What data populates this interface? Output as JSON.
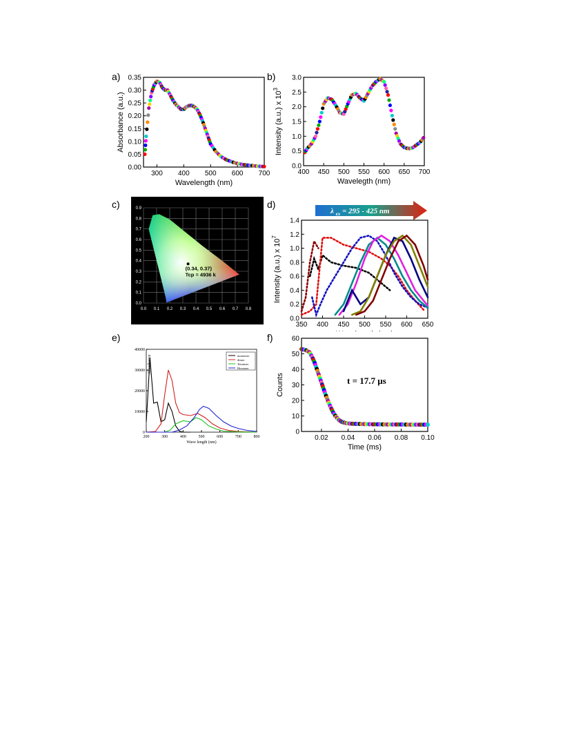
{
  "chart_data": [
    {
      "id": "a",
      "panel_label": "a)",
      "type": "scatter",
      "xlabel": "Wavelength (nm)",
      "ylabel": "Absorbance (a.u.)",
      "xlim": [
        250,
        700
      ],
      "ylim": [
        0,
        0.35
      ],
      "xticks": [
        300,
        400,
        500,
        600,
        700
      ],
      "yticks": [
        "0.00",
        "0.05",
        "0.10",
        "0.15",
        "0.20",
        "0.25",
        "0.30",
        "0.35"
      ],
      "series": [
        {
          "x": [
            255,
            260,
            270,
            280,
            290,
            300,
            310,
            320,
            330,
            340,
            350,
            360,
            370,
            380,
            390,
            400,
            410,
            420,
            430,
            440,
            450,
            460,
            470,
            480,
            490,
            500,
            520,
            540,
            560,
            580,
            600,
            620,
            640,
            660,
            680,
            700
          ],
          "y": [
            0.05,
            0.12,
            0.23,
            0.29,
            0.32,
            0.335,
            0.33,
            0.31,
            0.3,
            0.3,
            0.28,
            0.26,
            0.245,
            0.235,
            0.225,
            0.225,
            0.235,
            0.24,
            0.24,
            0.235,
            0.225,
            0.205,
            0.18,
            0.15,
            0.12,
            0.09,
            0.06,
            0.04,
            0.028,
            0.02,
            0.014,
            0.01,
            0.007,
            0.005,
            0.003,
            0.002
          ]
        }
      ]
    },
    {
      "id": "b",
      "panel_label": "b)",
      "type": "scatter",
      "xlabel": "Wavelegth (nm)",
      "ylabel": "Intensity (a.u.) x 10",
      "ylabel_exp": "3",
      "xlim": [
        400,
        700
      ],
      "ylim": [
        0,
        3.0
      ],
      "xticks": [
        400,
        450,
        500,
        550,
        600,
        650,
        700
      ],
      "yticks": [
        "0.0",
        "0.5",
        "1.0",
        "1.5",
        "2.0",
        "2.5",
        "3.0"
      ],
      "series": [
        {
          "x": [
            403,
            410,
            420,
            430,
            440,
            450,
            460,
            470,
            480,
            490,
            500,
            510,
            520,
            530,
            540,
            550,
            560,
            570,
            580,
            590,
            600,
            610,
            620,
            630,
            640,
            650,
            660,
            670,
            680,
            690,
            698
          ],
          "y": [
            0.45,
            0.6,
            0.75,
            1.0,
            1.5,
            2.1,
            2.3,
            2.25,
            2.05,
            1.8,
            1.75,
            2.1,
            2.4,
            2.45,
            2.3,
            2.2,
            2.45,
            2.7,
            2.85,
            2.95,
            2.85,
            2.4,
            1.7,
            1.1,
            0.75,
            0.62,
            0.58,
            0.6,
            0.7,
            0.8,
            0.95
          ]
        }
      ]
    },
    {
      "id": "c",
      "panel_label": "c)",
      "type": "scatter",
      "xlim": [
        0.0,
        0.8
      ],
      "ylim": [
        0.0,
        0.9
      ],
      "xticks": [
        "0.0",
        "0.1",
        "0.2",
        "0.3",
        "0.4",
        "0.5",
        "0.6",
        "0.7",
        "0.8"
      ],
      "yticks": [
        "0.0",
        "0.1",
        "0.2",
        "0.3",
        "0.4",
        "0.5",
        "0.6",
        "0.7",
        "0.8",
        "0.9"
      ],
      "point": {
        "x": 0.34,
        "y": 0.37
      },
      "annotation": [
        "(0.34, 0.37)",
        "Tcp = 4936 k"
      ]
    },
    {
      "id": "d",
      "panel_label": "d)",
      "type": "line",
      "xlabel": "Wavelength (nm)",
      "ylabel": "Intensity (a.u.) x 10",
      "ylabel_exp": "7",
      "xlim": [
        350,
        650
      ],
      "ylim": [
        0,
        1.4
      ],
      "xticks": [
        350,
        400,
        450,
        500,
        550,
        600,
        650
      ],
      "yticks": [
        "0.0",
        "0.2",
        "0.4",
        "0.6",
        "0.8",
        "1.0",
        "1.2",
        "1.4"
      ],
      "banner": "295 - 425 nm",
      "banner_prefix": "λ",
      "banner_sub": "ex",
      "series": [
        {
          "color": "#8b0000",
          "x": [
            350,
            360,
            370,
            380,
            390
          ],
          "y": [
            0.1,
            0.3,
            0.8,
            1.1,
            1.0
          ]
        },
        {
          "color": "#000000",
          "x": [
            370,
            380,
            390,
            400,
            420,
            450,
            480,
            510,
            540,
            560
          ],
          "y": [
            0.6,
            0.85,
            0.7,
            0.9,
            0.8,
            0.75,
            0.72,
            0.65,
            0.5,
            0.4
          ]
        },
        {
          "color": "#e01010",
          "x": [
            350,
            370,
            385,
            400,
            420,
            450,
            480,
            510,
            540,
            560,
            580,
            600,
            620,
            640
          ],
          "y": [
            0.05,
            0.1,
            0.2,
            1.15,
            1.15,
            1.05,
            1.0,
            0.95,
            0.85,
            0.75,
            0.6,
            0.4,
            0.25,
            0.12
          ]
        },
        {
          "color": "#1010c0",
          "x": [
            375,
            385,
            395,
            410,
            430,
            450,
            470,
            490,
            510,
            530,
            550,
            570,
            590,
            610,
            630,
            650
          ],
          "y": [
            0.3,
            0.05,
            0.2,
            0.4,
            0.6,
            0.8,
            1.0,
            1.15,
            1.18,
            1.1,
            0.9,
            0.65,
            0.45,
            0.3,
            0.2,
            0.15
          ]
        },
        {
          "color": "#008b8b",
          "x": [
            430,
            450,
            470,
            490,
            510,
            530,
            550,
            570,
            590,
            610,
            630,
            650
          ],
          "y": [
            0.05,
            0.2,
            0.5,
            0.8,
            1.05,
            1.15,
            1.05,
            0.85,
            0.6,
            0.4,
            0.25,
            0.15
          ]
        },
        {
          "color": "#e020e0",
          "x": [
            440,
            460,
            480,
            500,
            520,
            540,
            560,
            580,
            600,
            620,
            640,
            650
          ],
          "y": [
            0.05,
            0.2,
            0.5,
            0.85,
            1.1,
            1.18,
            1.1,
            0.9,
            0.65,
            0.4,
            0.25,
            0.18
          ]
        },
        {
          "color": "#000080",
          "x": [
            450,
            470,
            490,
            510,
            530,
            550,
            570,
            590,
            610,
            630,
            650
          ],
          "y": [
            0.1,
            0.4,
            0.2,
            0.3,
            0.6,
            0.9,
            1.15,
            1.1,
            0.85,
            0.55,
            0.3
          ]
        },
        {
          "color": "#808000",
          "x": [
            470,
            490,
            510,
            530,
            550,
            570,
            590,
            610,
            630,
            650
          ],
          "y": [
            0.05,
            0.1,
            0.3,
            0.6,
            0.9,
            1.1,
            1.18,
            1.05,
            0.75,
            0.45
          ]
        },
        {
          "color": "#800000",
          "x": [
            480,
            500,
            520,
            540,
            560,
            580,
            600,
            620,
            640,
            650
          ],
          "y": [
            0.05,
            0.1,
            0.25,
            0.55,
            0.85,
            1.1,
            1.18,
            1.05,
            0.75,
            0.55
          ]
        }
      ]
    },
    {
      "id": "e",
      "panel_label": "e)",
      "type": "line",
      "xlabel": "Wave length (nm)",
      "ylabel": "Absorbance",
      "xlim": [
        200,
        800
      ],
      "ylim": [
        0,
        40000
      ],
      "xticks": [
        200,
        300,
        400,
        500,
        600,
        700,
        800
      ],
      "yticks": [
        0,
        10000,
        20000,
        30000,
        40000
      ],
      "legend": "top-right",
      "series": [
        {
          "name": "monomer",
          "color": "#000000",
          "x": [
            200,
            210,
            220,
            230,
            240,
            260,
            280,
            300,
            320,
            340,
            360,
            380,
            400,
            440
          ],
          "y": [
            5000,
            20000,
            36000,
            25000,
            14000,
            14500,
            5000,
            6000,
            14000,
            10000,
            3000,
            500,
            0,
            0
          ]
        },
        {
          "name": "dimer",
          "color": "#d02020",
          "x": [
            200,
            250,
            280,
            300,
            320,
            340,
            360,
            380,
            400,
            440,
            480,
            520,
            560,
            600,
            650,
            700,
            800
          ],
          "y": [
            0,
            300,
            4000,
            18000,
            30000,
            25000,
            14000,
            9500,
            8500,
            8000,
            9000,
            7000,
            4000,
            2000,
            800,
            300,
            0
          ]
        },
        {
          "name": "Tetramer",
          "color": "#20c020",
          "x": [
            200,
            300,
            330,
            360,
            400,
            440,
            470,
            500,
            540,
            580,
            620,
            700,
            800
          ],
          "y": [
            0,
            0,
            1000,
            4000,
            5500,
            5000,
            7000,
            6000,
            3000,
            1500,
            500,
            100,
            0
          ]
        },
        {
          "name": "Hexamer",
          "color": "#2020d0",
          "x": [
            200,
            340,
            380,
            420,
            460,
            490,
            510,
            540,
            580,
            620,
            660,
            700,
            750,
            800
          ],
          "y": [
            0,
            0,
            1000,
            3000,
            7000,
            11000,
            12500,
            11500,
            8000,
            5000,
            3000,
            1800,
            800,
            300
          ]
        }
      ]
    },
    {
      "id": "f",
      "panel_label": "f)",
      "type": "scatter",
      "xlabel": "Time (ms)",
      "ylabel": "Counts",
      "xlim": [
        0.005,
        0.1
      ],
      "ylim": [
        0,
        60
      ],
      "xticks": [
        "0.02",
        "0.04",
        "0.06",
        "0.08",
        "0.10"
      ],
      "yticks": [
        "0",
        "10",
        "20",
        "30",
        "40",
        "50",
        "60"
      ],
      "annotation": "t = 17.7 μs",
      "series": [
        {
          "x": [
            0.005,
            0.008,
            0.011,
            0.013,
            0.015,
            0.017,
            0.019,
            0.021,
            0.023,
            0.025,
            0.027,
            0.029,
            0.031,
            0.033,
            0.035,
            0.037,
            0.039,
            0.042,
            0.046,
            0.05,
            0.055,
            0.06,
            0.065,
            0.07,
            0.075,
            0.08,
            0.085,
            0.09,
            0.095,
            0.1
          ],
          "y": [
            53,
            52.5,
            51,
            48,
            44,
            39,
            34,
            29,
            24,
            19.5,
            15.5,
            12,
            9.5,
            7.5,
            6.3,
            5.7,
            5.3,
            5.0,
            4.9,
            4.8,
            4.7,
            4.6,
            4.6,
            4.5,
            4.5,
            4.5,
            4.4,
            4.4,
            4.4,
            4.4
          ]
        }
      ]
    }
  ]
}
